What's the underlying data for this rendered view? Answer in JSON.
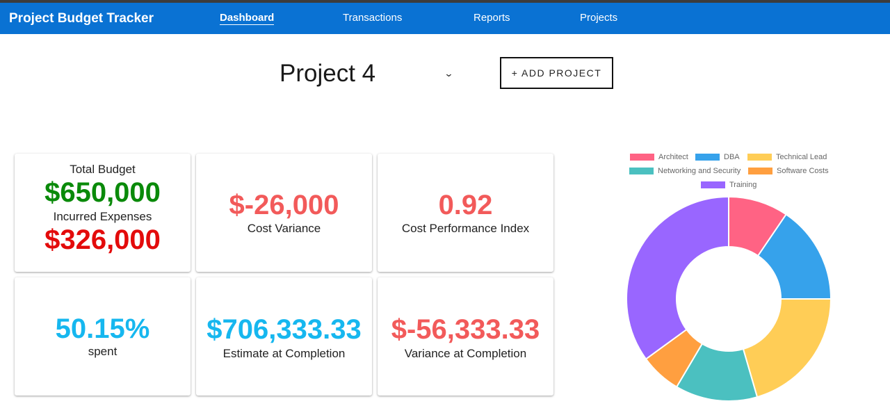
{
  "app": {
    "brand": "Project Budget Tracker"
  },
  "nav": {
    "dashboard": "Dashboard",
    "transactions": "Transactions",
    "reports": "Reports",
    "projects": "Projects"
  },
  "project": {
    "selected": "Project 4",
    "add_label": "+ ADD PROJECT"
  },
  "cards": {
    "total_budget_label": "Total Budget",
    "total_budget_value": "$650,000",
    "incurred_label": "Incurred Expenses",
    "incurred_value": "$326,000",
    "cost_variance_value": "$-26,000",
    "cost_variance_label": "Cost Variance",
    "cpi_value": "0.92",
    "cpi_label": "Cost Performance Index",
    "spent_value": "50.15%",
    "spent_label": "spent",
    "eac_value": "$706,333.33",
    "eac_label": "Estimate at Completion",
    "vac_value": "$-56,333.33",
    "vac_label": "Variance at Completion"
  },
  "colors": {
    "navbar": "#0a72d3",
    "positive": "#0a8a0a",
    "negative": "#e30b0b",
    "warning": "#f25a5a",
    "info": "#16b7ef"
  },
  "chart_data": {
    "type": "pie",
    "variant": "doughnut",
    "legend_position": "top",
    "categories": [
      "Architect",
      "DBA",
      "Technical Lead",
      "Networking and Security",
      "Software Costs",
      "Training"
    ],
    "values": [
      9.5,
      15.5,
      20.5,
      13,
      6.5,
      35
    ],
    "colors": [
      "#ff6384",
      "#36a2eb",
      "#ffcd56",
      "#4bc0c0",
      "#ff9f40",
      "#9966ff"
    ]
  }
}
